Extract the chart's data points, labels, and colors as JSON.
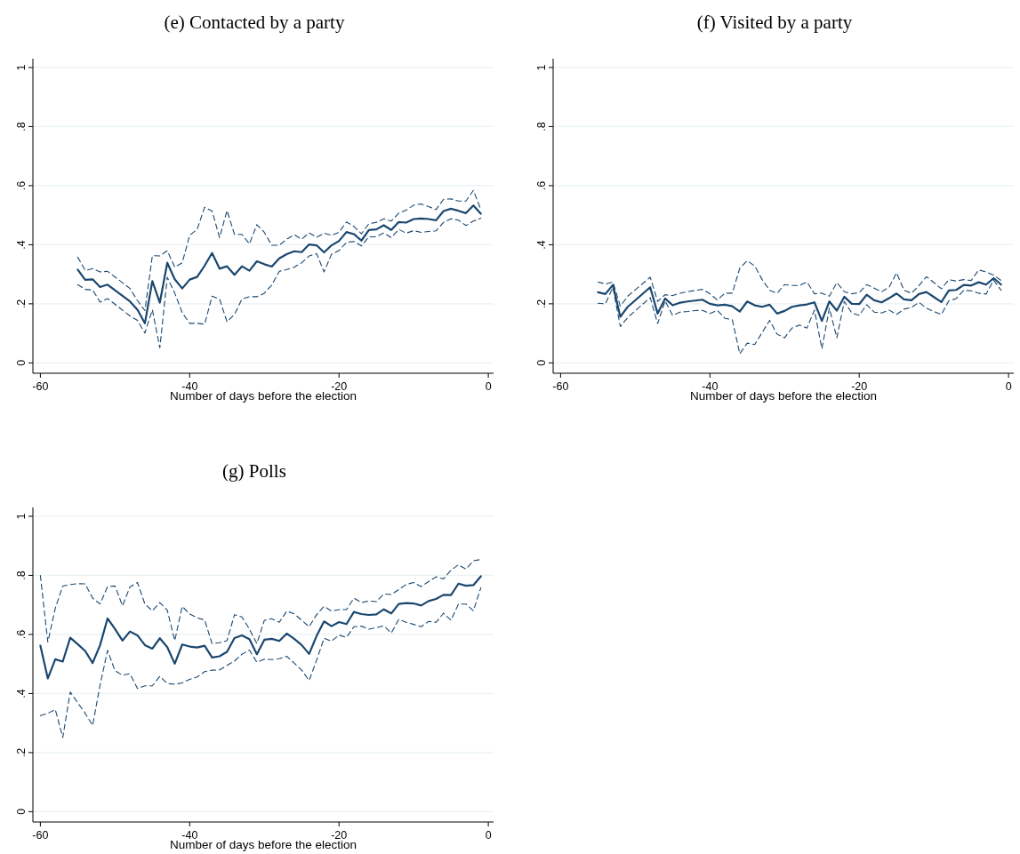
{
  "chart_data": [
    {
      "type": "line",
      "title": "(e) Contacted by a party",
      "xlabel": "Number of days before the election",
      "xlim": [
        -61,
        0.7
      ],
      "ylim": [
        -0.035,
        1.03
      ],
      "xticks": [
        -60,
        -40,
        -20,
        0
      ],
      "yticks": [
        {
          "value": 0,
          "label": "0"
        },
        {
          "value": 0.2,
          "label": ".2"
        },
        {
          "value": 0.4,
          "label": ".4"
        },
        {
          "value": 0.6,
          "label": ".6"
        },
        {
          "value": 0.8,
          "label": ".8"
        },
        {
          "value": 1,
          "label": "1"
        }
      ],
      "grid": "y",
      "x": [
        -55,
        -54,
        -53,
        -52,
        -51,
        -48,
        -47,
        -46,
        -45,
        -44,
        -43,
        -42,
        -41,
        -40,
        -39,
        -38,
        -37,
        -36,
        -35,
        -34,
        -33,
        -32,
        -31,
        -30,
        -29,
        -28,
        -27,
        -26,
        -25,
        -24,
        -23,
        -22,
        -21,
        -20,
        -19,
        -18,
        -17,
        -16,
        -15,
        -14,
        -13,
        -12,
        -11,
        -10,
        -9,
        -8,
        -7,
        -6,
        -5,
        -4,
        -3,
        -2,
        -1
      ],
      "series": [
        {
          "color": "#1a476f",
          "line_style": "solid",
          "values": [
            0.316,
            0.281,
            0.283,
            0.257,
            0.265,
            0.208,
            0.18,
            0.134,
            0.277,
            0.204,
            0.339,
            0.283,
            0.252,
            0.282,
            0.291,
            0.329,
            0.372,
            0.319,
            0.327,
            0.298,
            0.327,
            0.312,
            0.344,
            0.334,
            0.326,
            0.354,
            0.368,
            0.378,
            0.375,
            0.401,
            0.398,
            0.374,
            0.398,
            0.413,
            0.443,
            0.436,
            0.414,
            0.45,
            0.452,
            0.466,
            0.45,
            0.477,
            0.475,
            0.487,
            0.489,
            0.487,
            0.483,
            0.514,
            0.522,
            0.515,
            0.507,
            0.533,
            0.505
          ]
        },
        {
          "color": "#1a476f",
          "line_style": "dashed",
          "values": [
            0.358,
            0.313,
            0.319,
            0.308,
            0.31,
            0.252,
            0.211,
            0.177,
            0.363,
            0.362,
            0.38,
            0.324,
            0.339,
            0.432,
            0.452,
            0.527,
            0.514,
            0.424,
            0.516,
            0.435,
            0.435,
            0.403,
            0.468,
            0.442,
            0.398,
            0.398,
            0.419,
            0.434,
            0.419,
            0.44,
            0.425,
            0.439,
            0.432,
            0.442,
            0.477,
            0.462,
            0.437,
            0.471,
            0.476,
            0.488,
            0.48,
            0.507,
            0.517,
            0.534,
            0.538,
            0.529,
            0.519,
            0.554,
            0.555,
            0.548,
            0.548,
            0.584,
            0.519
          ]
        },
        {
          "color": "#1a476f",
          "line_style": "dashed",
          "values": [
            0.265,
            0.249,
            0.247,
            0.206,
            0.218,
            0.159,
            0.144,
            0.101,
            0.18,
            0.051,
            0.29,
            0.236,
            0.17,
            0.134,
            0.134,
            0.131,
            0.226,
            0.216,
            0.139,
            0.164,
            0.216,
            0.224,
            0.224,
            0.236,
            0.264,
            0.31,
            0.316,
            0.324,
            0.339,
            0.362,
            0.37,
            0.308,
            0.368,
            0.38,
            0.408,
            0.411,
            0.396,
            0.427,
            0.427,
            0.44,
            0.424,
            0.452,
            0.439,
            0.448,
            0.442,
            0.445,
            0.447,
            0.476,
            0.488,
            0.483,
            0.465,
            0.48,
            0.49
          ]
        }
      ]
    },
    {
      "type": "line",
      "title": "(f) Visited by a party",
      "xlabel": "Number of days before the election",
      "xlim": [
        -61,
        0.7
      ],
      "ylim": [
        -0.035,
        1.03
      ],
      "xticks": [
        -60,
        -40,
        -20,
        0
      ],
      "yticks": [
        {
          "value": 0,
          "label": "0"
        },
        {
          "value": 0.2,
          "label": ".2"
        },
        {
          "value": 0.4,
          "label": ".4"
        },
        {
          "value": 0.6,
          "label": ".6"
        },
        {
          "value": 0.8,
          "label": ".8"
        },
        {
          "value": 1,
          "label": "1"
        }
      ],
      "grid": "y",
      "x": [
        -55,
        -54,
        -53,
        -52,
        -51,
        -48,
        -47,
        -46,
        -45,
        -44,
        -43,
        -42,
        -41,
        -40,
        -39,
        -38,
        -37,
        -36,
        -35,
        -34,
        -33,
        -32,
        -31,
        -30,
        -29,
        -28,
        -27,
        -26,
        -25,
        -24,
        -23,
        -22,
        -21,
        -20,
        -19,
        -18,
        -17,
        -16,
        -15,
        -14,
        -13,
        -12,
        -11,
        -10,
        -9,
        -8,
        -7,
        -6,
        -5,
        -4,
        -3,
        -2,
        -1
      ],
      "series": [
        {
          "color": "#1a476f",
          "line_style": "solid",
          "values": [
            0.239,
            0.233,
            0.264,
            0.156,
            0.19,
            0.256,
            0.167,
            0.218,
            0.195,
            0.204,
            0.208,
            0.211,
            0.214,
            0.2,
            0.195,
            0.197,
            0.192,
            0.174,
            0.208,
            0.195,
            0.19,
            0.197,
            0.167,
            0.176,
            0.19,
            0.195,
            0.198,
            0.205,
            0.142,
            0.208,
            0.177,
            0.224,
            0.2,
            0.199,
            0.231,
            0.212,
            0.205,
            0.219,
            0.235,
            0.215,
            0.212,
            0.233,
            0.24,
            0.223,
            0.206,
            0.245,
            0.247,
            0.264,
            0.262,
            0.273,
            0.265,
            0.287,
            0.265
          ]
        },
        {
          "color": "#1a476f",
          "line_style": "dashed",
          "values": [
            0.274,
            0.267,
            0.274,
            0.192,
            0.226,
            0.29,
            0.208,
            0.231,
            0.228,
            0.236,
            0.241,
            0.245,
            0.249,
            0.234,
            0.213,
            0.236,
            0.236,
            0.321,
            0.346,
            0.328,
            0.282,
            0.246,
            0.236,
            0.265,
            0.262,
            0.262,
            0.274,
            0.234,
            0.236,
            0.226,
            0.272,
            0.241,
            0.234,
            0.238,
            0.265,
            0.253,
            0.241,
            0.256,
            0.305,
            0.246,
            0.236,
            0.262,
            0.292,
            0.272,
            0.251,
            0.282,
            0.277,
            0.282,
            0.279,
            0.315,
            0.308,
            0.297,
            0.279
          ]
        },
        {
          "color": "#1a476f",
          "line_style": "dashed",
          "values": [
            0.202,
            0.2,
            0.256,
            0.123,
            0.154,
            0.221,
            0.133,
            0.21,
            0.161,
            0.172,
            0.174,
            0.177,
            0.178,
            0.167,
            0.178,
            0.151,
            0.146,
            0.031,
            0.067,
            0.062,
            0.103,
            0.144,
            0.097,
            0.085,
            0.118,
            0.128,
            0.118,
            0.179,
            0.048,
            0.185,
            0.085,
            0.208,
            0.169,
            0.161,
            0.197,
            0.172,
            0.169,
            0.179,
            0.164,
            0.182,
            0.188,
            0.205,
            0.185,
            0.174,
            0.164,
            0.21,
            0.218,
            0.246,
            0.244,
            0.236,
            0.233,
            0.28,
            0.246
          ]
        }
      ]
    },
    {
      "type": "line",
      "title": "(g) Polls",
      "xlabel": "Number of days before the election",
      "xlim": [
        -61,
        0.7
      ],
      "ylim": [
        -0.035,
        1.03
      ],
      "xticks": [
        -60,
        -40,
        -20,
        0
      ],
      "yticks": [
        {
          "value": 0,
          "label": "0"
        },
        {
          "value": 0.2,
          "label": ".2"
        },
        {
          "value": 0.4,
          "label": ".4"
        },
        {
          "value": 0.6,
          "label": ".6"
        },
        {
          "value": 0.8,
          "label": ".8"
        },
        {
          "value": 1,
          "label": "1"
        }
      ],
      "grid": "y",
      "x": [
        -60,
        -59,
        -58,
        -57,
        -56,
        -55,
        -54,
        -53,
        -52,
        -51,
        -50,
        -49,
        -48,
        -47,
        -46,
        -45,
        -44,
        -43,
        -42,
        -41,
        -40,
        -39,
        -38,
        -37,
        -36,
        -35,
        -34,
        -33,
        -32,
        -31,
        -30,
        -29,
        -28,
        -27,
        -26,
        -25,
        -24,
        -23,
        -22,
        -21,
        -20,
        -19,
        -18,
        -17,
        -16,
        -15,
        -14,
        -13,
        -12,
        -11,
        -10,
        -9,
        -8,
        -7,
        -6,
        -5,
        -4,
        -3,
        -2,
        -1
      ],
      "series": [
        {
          "color": "#1a476f",
          "line_style": "solid",
          "values": [
            0.562,
            0.451,
            0.516,
            0.508,
            0.589,
            0.567,
            0.544,
            0.503,
            0.564,
            0.654,
            0.618,
            0.579,
            0.61,
            0.597,
            0.564,
            0.552,
            0.587,
            0.557,
            0.501,
            0.566,
            0.559,
            0.556,
            0.562,
            0.522,
            0.526,
            0.541,
            0.588,
            0.597,
            0.584,
            0.533,
            0.582,
            0.585,
            0.578,
            0.603,
            0.585,
            0.564,
            0.534,
            0.595,
            0.644,
            0.628,
            0.642,
            0.635,
            0.676,
            0.669,
            0.666,
            0.668,
            0.685,
            0.671,
            0.703,
            0.706,
            0.705,
            0.698,
            0.713,
            0.72,
            0.734,
            0.733,
            0.772,
            0.765,
            0.767,
            0.797
          ]
        },
        {
          "color": "#1a476f",
          "line_style": "dashed",
          "values": [
            0.8,
            0.574,
            0.689,
            0.764,
            0.769,
            0.772,
            0.771,
            0.723,
            0.703,
            0.762,
            0.764,
            0.697,
            0.761,
            0.776,
            0.703,
            0.68,
            0.708,
            0.682,
            0.579,
            0.695,
            0.669,
            0.656,
            0.649,
            0.569,
            0.572,
            0.579,
            0.667,
            0.659,
            0.618,
            0.569,
            0.648,
            0.653,
            0.641,
            0.679,
            0.67,
            0.648,
            0.626,
            0.667,
            0.695,
            0.679,
            0.684,
            0.684,
            0.723,
            0.708,
            0.713,
            0.711,
            0.737,
            0.735,
            0.752,
            0.769,
            0.776,
            0.762,
            0.779,
            0.795,
            0.788,
            0.818,
            0.836,
            0.821,
            0.849,
            0.854
          ]
        },
        {
          "color": "#1a476f",
          "line_style": "dashed",
          "values": [
            0.325,
            0.333,
            0.346,
            0.251,
            0.405,
            0.369,
            0.333,
            0.292,
            0.429,
            0.546,
            0.477,
            0.462,
            0.467,
            0.417,
            0.426,
            0.426,
            0.458,
            0.434,
            0.431,
            0.436,
            0.448,
            0.456,
            0.474,
            0.479,
            0.48,
            0.495,
            0.51,
            0.533,
            0.547,
            0.506,
            0.516,
            0.515,
            0.518,
            0.526,
            0.503,
            0.479,
            0.444,
            0.513,
            0.587,
            0.577,
            0.598,
            0.59,
            0.626,
            0.628,
            0.618,
            0.623,
            0.629,
            0.605,
            0.651,
            0.641,
            0.634,
            0.626,
            0.644,
            0.641,
            0.672,
            0.648,
            0.703,
            0.703,
            0.68,
            0.758
          ]
        }
      ]
    }
  ]
}
